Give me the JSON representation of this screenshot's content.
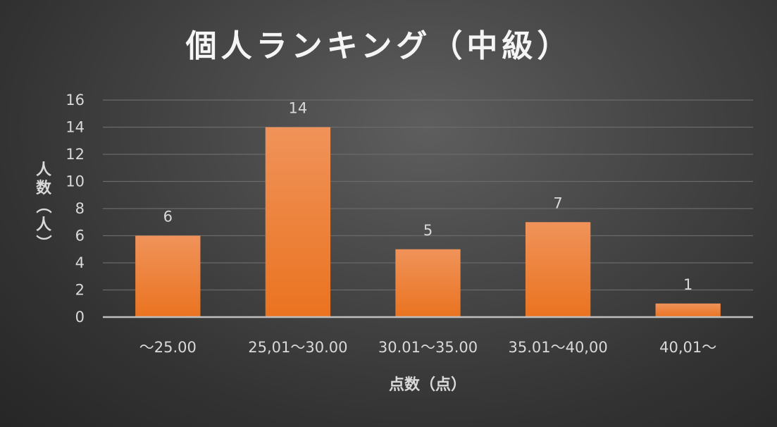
{
  "chart_data": {
    "type": "bar",
    "title": "個人ランキング（中級）",
    "xlabel": "点数（点）",
    "ylabel": "人数（人）",
    "categories": [
      "～25.00",
      "25,01～30.00",
      "30.01～35.00",
      "35.01～40,00",
      "40,01～"
    ],
    "values": [
      6,
      14,
      5,
      7,
      1
    ],
    "ylim": [
      0,
      16
    ],
    "yticks": [
      0,
      2,
      4,
      6,
      8,
      10,
      12,
      14,
      16
    ],
    "grid": true,
    "legend": "none",
    "data_labels": true,
    "colors": {
      "bar_top": "#f0935a",
      "bar_bottom": "#ea7320",
      "grid": "#6a6a6a",
      "axis": "#bfbfbf",
      "text": "#d9d9d9"
    }
  }
}
